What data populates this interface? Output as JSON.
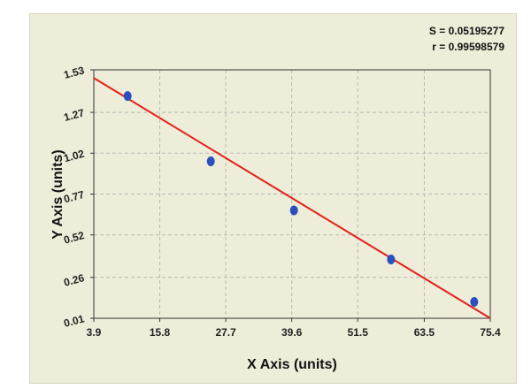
{
  "chart_data": {
    "type": "scatter",
    "xlabel": "X Axis (units)",
    "ylabel": "Y Axis (units)",
    "xlim": [
      3.9,
      75.4
    ],
    "ylim": [
      0.01,
      1.53
    ],
    "xticks": [
      "3.9",
      "15.8",
      "27.7",
      "39.6",
      "51.5",
      "63.5",
      "75.4"
    ],
    "xtick_values": [
      3.9,
      15.8,
      27.7,
      39.6,
      51.5,
      63.5,
      75.4
    ],
    "yticks": [
      "0.01",
      "0.26",
      "0.52",
      "0.77",
      "1.02",
      "1.27",
      "1.53"
    ],
    "ytick_values": [
      0.01,
      0.26,
      0.52,
      0.77,
      1.02,
      1.27,
      1.53
    ],
    "grid": true,
    "series": [
      {
        "values_x": [
          10,
          25,
          40,
          57.5,
          72.5
        ],
        "values_y": [
          1.37,
          0.97,
          0.67,
          0.37,
          0.11
        ]
      }
    ],
    "fit_line": {
      "x": [
        3.9,
        75.4
      ],
      "y": [
        1.48,
        0.01
      ],
      "color": "#e32119"
    },
    "point_color": "#2c4fc0",
    "stats": {
      "s": "S = 0.05195277",
      "r": "r = 0.99598579"
    }
  }
}
